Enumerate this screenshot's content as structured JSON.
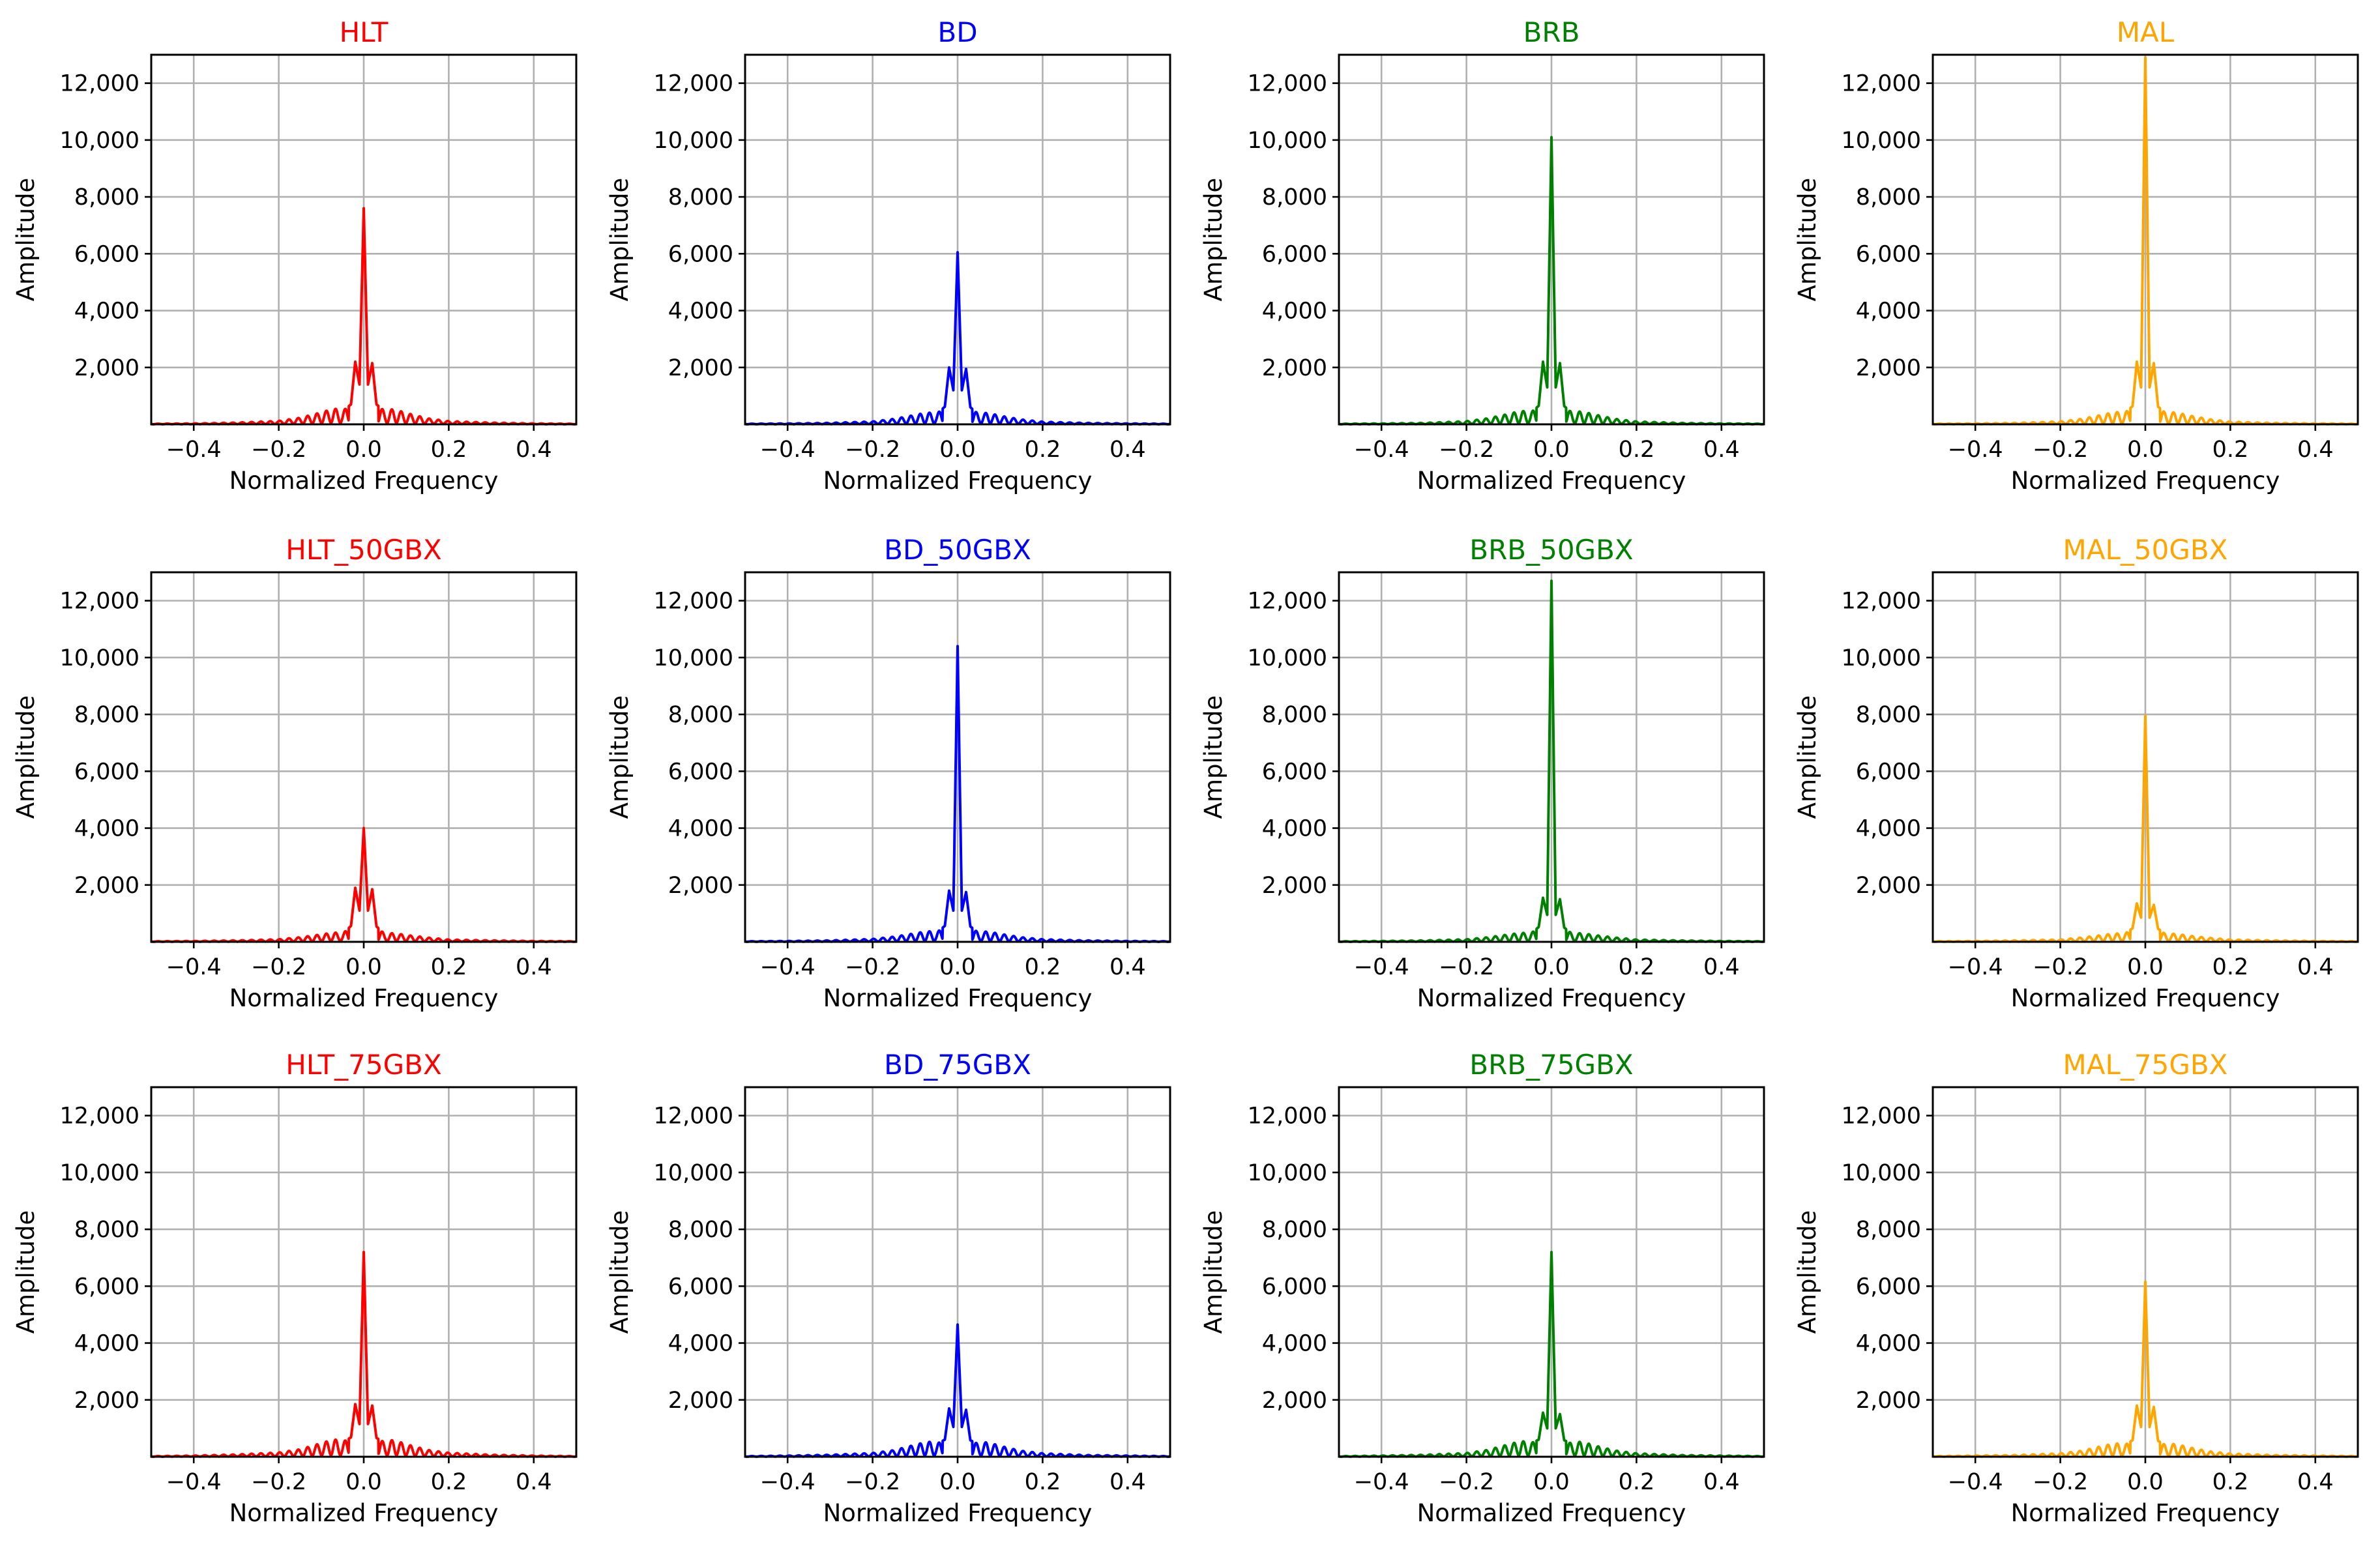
{
  "figure": {
    "xlabel": "Normalized Frequency",
    "ylabel": "Amplitude",
    "xlim": [
      -0.5,
      0.5
    ],
    "ylim": [
      0,
      13000
    ],
    "xticks": [
      -0.4,
      -0.2,
      0.0,
      0.2,
      0.4
    ],
    "xtick_labels": [
      "−0.4",
      "−0.2",
      "0.0",
      "0.2",
      "0.4"
    ],
    "yticks": [
      2000,
      4000,
      6000,
      8000,
      10000,
      12000
    ],
    "ytick_labels": [
      "2,000",
      "4,000",
      "6,000",
      "8,000",
      "10,000",
      "12,000"
    ],
    "colors": {
      "HLT": "#ff0000",
      "BD": "#0000ff",
      "BRB": "#008000",
      "MAL": "#ffa500"
    }
  },
  "chart_data": [
    {
      "type": "line",
      "title": "HLT",
      "color": "#ff0000",
      "xlabel": "Normalized Frequency",
      "ylabel": "Amplitude",
      "xlim": [
        -0.5,
        0.5
      ],
      "ylim": [
        0,
        13000
      ],
      "grid": true,
      "peak": 7600,
      "side_lobe": 2200,
      "x": [
        -0.5,
        -0.4,
        -0.3,
        -0.2,
        -0.15,
        -0.1,
        -0.07,
        -0.05,
        -0.03,
        -0.02,
        -0.01,
        0.0,
        0.01,
        0.02,
        0.03,
        0.05,
        0.07,
        0.1,
        0.15,
        0.2,
        0.3,
        0.4,
        0.5
      ],
      "y": [
        20,
        30,
        60,
        120,
        230,
        420,
        560,
        470,
        700,
        2200,
        1400,
        7600,
        1400,
        2150,
        700,
        460,
        540,
        400,
        210,
        110,
        60,
        30,
        20
      ]
    },
    {
      "type": "line",
      "title": "BD",
      "color": "#0000ff",
      "xlabel": "Normalized Frequency",
      "ylabel": "Amplitude",
      "xlim": [
        -0.5,
        0.5
      ],
      "ylim": [
        0,
        13000
      ],
      "grid": true,
      "peak": 6050,
      "side_lobe": 2000,
      "x": [
        -0.5,
        -0.4,
        -0.3,
        -0.2,
        -0.15,
        -0.1,
        -0.07,
        -0.05,
        -0.03,
        -0.02,
        -0.01,
        0.0,
        0.01,
        0.02,
        0.03,
        0.05,
        0.07,
        0.1,
        0.15,
        0.2,
        0.3,
        0.4,
        0.5
      ],
      "y": [
        20,
        30,
        50,
        100,
        190,
        330,
        420,
        360,
        620,
        2000,
        1200,
        6050,
        1200,
        1950,
        600,
        350,
        410,
        300,
        170,
        90,
        50,
        30,
        20
      ]
    },
    {
      "type": "line",
      "title": "BRB",
      "color": "#008000",
      "xlabel": "Normalized Frequency",
      "ylabel": "Amplitude",
      "xlim": [
        -0.5,
        0.5
      ],
      "ylim": [
        0,
        13000
      ],
      "grid": true,
      "peak": 10100,
      "side_lobe": 2200,
      "x": [
        -0.5,
        -0.4,
        -0.3,
        -0.2,
        -0.15,
        -0.1,
        -0.07,
        -0.05,
        -0.03,
        -0.02,
        -0.01,
        0.0,
        0.01,
        0.02,
        0.03,
        0.05,
        0.07,
        0.1,
        0.15,
        0.2,
        0.3,
        0.4,
        0.5
      ],
      "y": [
        20,
        30,
        50,
        110,
        210,
        370,
        480,
        400,
        650,
        2200,
        1300,
        10100,
        1300,
        2150,
        640,
        390,
        460,
        350,
        190,
        100,
        50,
        30,
        20
      ]
    },
    {
      "type": "line",
      "title": "MAL",
      "color": "#ffa500",
      "xlabel": "Normalized Frequency",
      "ylabel": "Amplitude",
      "xlim": [
        -0.5,
        0.5
      ],
      "ylim": [
        0,
        13000
      ],
      "grid": true,
      "peak": 12900,
      "side_lobe": 2200,
      "x": [
        -0.5,
        -0.4,
        -0.3,
        -0.2,
        -0.15,
        -0.1,
        -0.07,
        -0.05,
        -0.03,
        -0.02,
        -0.01,
        0.0,
        0.01,
        0.02,
        0.03,
        0.05,
        0.07,
        0.1,
        0.15,
        0.2,
        0.3,
        0.4,
        0.5
      ],
      "y": [
        20,
        30,
        50,
        100,
        190,
        340,
        440,
        380,
        640,
        2200,
        1300,
        12900,
        1300,
        2150,
        620,
        370,
        430,
        320,
        180,
        90,
        50,
        30,
        20
      ]
    },
    {
      "type": "line",
      "title": "HLT_50GBX",
      "color": "#ff0000",
      "xlabel": "Normalized Frequency",
      "ylabel": "Amplitude",
      "xlim": [
        -0.5,
        0.5
      ],
      "ylim": [
        0,
        13000
      ],
      "grid": true,
      "peak": 4000,
      "side_lobe": 1900,
      "x": [
        -0.5,
        -0.4,
        -0.3,
        -0.2,
        -0.15,
        -0.1,
        -0.07,
        -0.05,
        -0.03,
        -0.02,
        -0.01,
        0.0,
        0.01,
        0.02,
        0.03,
        0.05,
        0.07,
        0.1,
        0.15,
        0.2,
        0.3,
        0.4,
        0.5
      ],
      "y": [
        20,
        30,
        50,
        90,
        160,
        260,
        330,
        280,
        560,
        1900,
        1100,
        4000,
        1100,
        1850,
        540,
        270,
        310,
        240,
        150,
        80,
        50,
        30,
        20
      ]
    },
    {
      "type": "line",
      "title": "BD_50GBX",
      "color": "#0000ff",
      "xlabel": "Normalized Frequency",
      "ylabel": "Amplitude",
      "xlim": [
        -0.5,
        0.5
      ],
      "ylim": [
        0,
        13000
      ],
      "grid": true,
      "peak": 10400,
      "side_lobe": 1800,
      "x": [
        -0.5,
        -0.4,
        -0.3,
        -0.2,
        -0.15,
        -0.1,
        -0.07,
        -0.05,
        -0.03,
        -0.02,
        -0.01,
        0.0,
        0.01,
        0.02,
        0.03,
        0.05,
        0.07,
        0.1,
        0.15,
        0.2,
        0.3,
        0.4,
        0.5
      ],
      "y": [
        20,
        30,
        50,
        100,
        180,
        300,
        380,
        320,
        560,
        1800,
        1100,
        10400,
        1100,
        1750,
        540,
        310,
        370,
        280,
        160,
        90,
        50,
        30,
        20
      ]
    },
    {
      "type": "line",
      "title": "BRB_50GBX",
      "color": "#008000",
      "xlabel": "Normalized Frequency",
      "ylabel": "Amplitude",
      "xlim": [
        -0.5,
        0.5
      ],
      "ylim": [
        0,
        13000
      ],
      "grid": true,
      "peak": 12700,
      "side_lobe": 1550,
      "x": [
        -0.5,
        -0.4,
        -0.3,
        -0.2,
        -0.15,
        -0.1,
        -0.07,
        -0.05,
        -0.03,
        -0.02,
        -0.01,
        0.0,
        0.01,
        0.02,
        0.03,
        0.05,
        0.07,
        0.1,
        0.15,
        0.2,
        0.3,
        0.4,
        0.5
      ],
      "y": [
        20,
        30,
        50,
        90,
        160,
        260,
        320,
        280,
        520,
        1550,
        950,
        12700,
        950,
        1500,
        500,
        270,
        310,
        240,
        150,
        80,
        50,
        30,
        20
      ]
    },
    {
      "type": "line",
      "title": "MAL_50GBX",
      "color": "#ffa500",
      "xlabel": "Normalized Frequency",
      "ylabel": "Amplitude",
      "xlim": [
        -0.5,
        0.5
      ],
      "ylim": [
        0,
        13000
      ],
      "grid": true,
      "peak": 7950,
      "side_lobe": 1350,
      "x": [
        -0.5,
        -0.4,
        -0.3,
        -0.2,
        -0.15,
        -0.1,
        -0.07,
        -0.05,
        -0.03,
        -0.02,
        -0.01,
        0.0,
        0.01,
        0.02,
        0.03,
        0.05,
        0.07,
        0.1,
        0.15,
        0.2,
        0.3,
        0.4,
        0.5
      ],
      "y": [
        20,
        30,
        50,
        80,
        150,
        240,
        300,
        260,
        480,
        1350,
        850,
        7950,
        850,
        1300,
        460,
        250,
        290,
        220,
        140,
        80,
        50,
        30,
        20
      ]
    },
    {
      "type": "line",
      "title": "HLT_75GBX",
      "color": "#ff0000",
      "xlabel": "Normalized Frequency",
      "ylabel": "Amplitude",
      "xlim": [
        -0.5,
        0.5
      ],
      "ylim": [
        0,
        13000
      ],
      "grid": true,
      "peak": 7200,
      "side_lobe": 1850,
      "x": [
        -0.5,
        -0.4,
        -0.3,
        -0.2,
        -0.15,
        -0.1,
        -0.07,
        -0.05,
        -0.03,
        -0.02,
        -0.01,
        0.0,
        0.01,
        0.02,
        0.03,
        0.05,
        0.07,
        0.1,
        0.15,
        0.2,
        0.3,
        0.4,
        0.5
      ],
      "y": [
        20,
        40,
        80,
        150,
        260,
        480,
        620,
        520,
        680,
        1850,
        1150,
        7200,
        1150,
        1800,
        660,
        500,
        600,
        440,
        240,
        140,
        70,
        40,
        20
      ]
    },
    {
      "type": "line",
      "title": "BD_75GBX",
      "color": "#0000ff",
      "xlabel": "Normalized Frequency",
      "ylabel": "Amplitude",
      "xlim": [
        -0.5,
        0.5
      ],
      "ylim": [
        0,
        13000
      ],
      "grid": true,
      "peak": 4650,
      "side_lobe": 1700,
      "x": [
        -0.5,
        -0.4,
        -0.3,
        -0.2,
        -0.15,
        -0.1,
        -0.07,
        -0.05,
        -0.03,
        -0.02,
        -0.01,
        0.0,
        0.01,
        0.02,
        0.03,
        0.05,
        0.07,
        0.1,
        0.15,
        0.2,
        0.3,
        0.4,
        0.5
      ],
      "y": [
        20,
        40,
        70,
        130,
        230,
        420,
        540,
        450,
        600,
        1700,
        1050,
        4650,
        1050,
        1650,
        580,
        440,
        520,
        380,
        210,
        120,
        60,
        40,
        20
      ]
    },
    {
      "type": "line",
      "title": "BRB_75GBX",
      "color": "#008000",
      "xlabel": "Normalized Frequency",
      "ylabel": "Amplitude",
      "xlim": [
        -0.5,
        0.5
      ],
      "ylim": [
        0,
        13000
      ],
      "grid": true,
      "peak": 7200,
      "side_lobe": 1550,
      "x": [
        -0.5,
        -0.4,
        -0.3,
        -0.2,
        -0.15,
        -0.1,
        -0.07,
        -0.05,
        -0.03,
        -0.02,
        -0.01,
        0.0,
        0.01,
        0.02,
        0.03,
        0.05,
        0.07,
        0.1,
        0.15,
        0.2,
        0.3,
        0.4,
        0.5
      ],
      "y": [
        20,
        40,
        70,
        130,
        240,
        440,
        560,
        470,
        600,
        1550,
        1000,
        7200,
        1000,
        1500,
        580,
        450,
        540,
        400,
        220,
        120,
        60,
        40,
        20
      ]
    },
    {
      "type": "line",
      "title": "MAL_75GBX",
      "color": "#ffa500",
      "xlabel": "Normalized Frequency",
      "ylabel": "Amplitude",
      "xlim": [
        -0.5,
        0.5
      ],
      "ylim": [
        0,
        13000
      ],
      "grid": true,
      "peak": 6150,
      "side_lobe": 1800,
      "x": [
        -0.5,
        -0.4,
        -0.3,
        -0.2,
        -0.15,
        -0.1,
        -0.07,
        -0.05,
        -0.03,
        -0.02,
        -0.01,
        0.0,
        0.01,
        0.02,
        0.03,
        0.05,
        0.07,
        0.1,
        0.15,
        0.2,
        0.3,
        0.4,
        0.5
      ],
      "y": [
        20,
        40,
        60,
        120,
        210,
        380,
        480,
        400,
        580,
        1800,
        1050,
        6150,
        1050,
        1750,
        560,
        390,
        460,
        340,
        190,
        110,
        60,
        40,
        20
      ]
    }
  ]
}
